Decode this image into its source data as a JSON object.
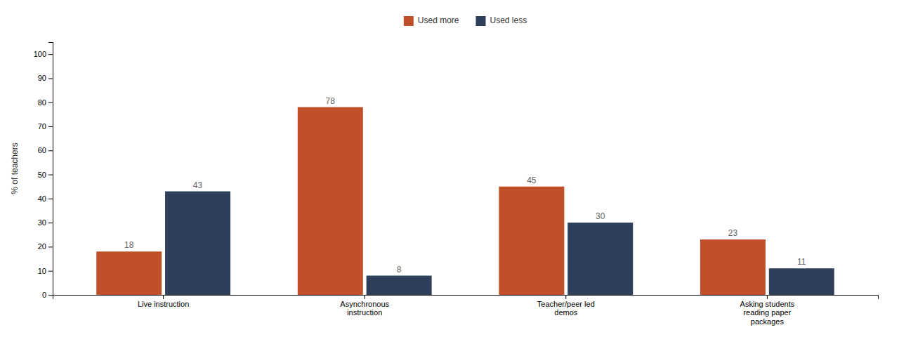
{
  "chart_data": {
    "type": "bar",
    "categories": [
      "Live instruction",
      "Asynchronous\ninstruction",
      "Teacher/peer led\ndemos",
      "Asking students\nreading paper\npackages"
    ],
    "series": [
      {
        "name": "Used more",
        "color": "#C0502A",
        "values": [
          18,
          78,
          45,
          23
        ]
      },
      {
        "name": "Used less",
        "color": "#2E3F5C",
        "values": [
          43,
          8,
          30,
          11
        ]
      }
    ],
    "ylabel": "% of teachers",
    "ylim": [
      0,
      105
    ],
    "yticks": [
      0,
      10,
      20,
      30,
      40,
      50,
      60,
      70,
      80,
      90,
      100
    ],
    "grid": false,
    "legend": "top",
    "data_labels": true
  }
}
